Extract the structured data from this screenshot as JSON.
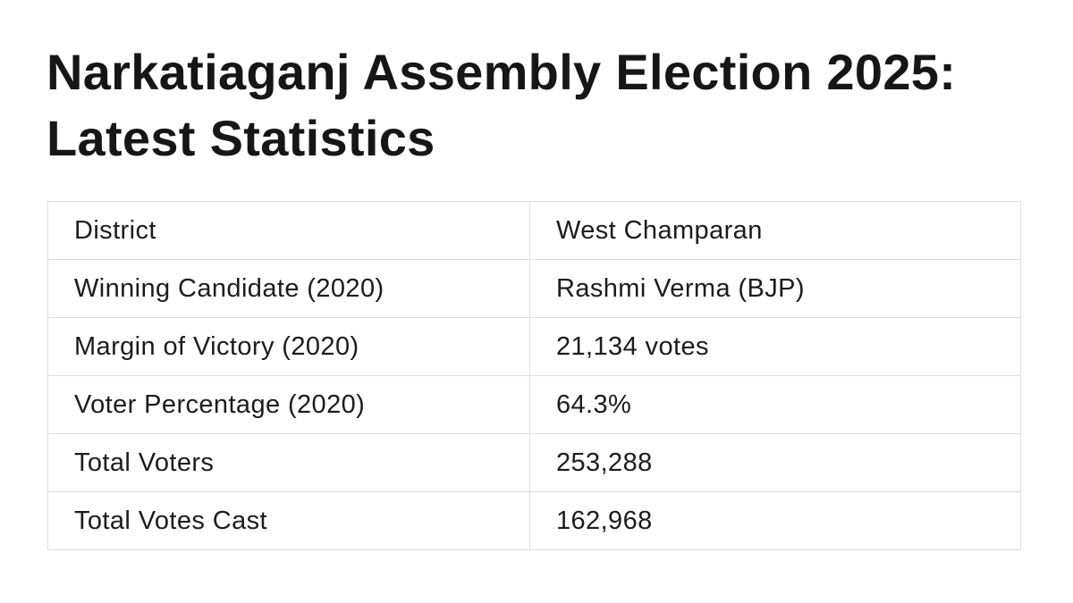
{
  "page": {
    "title": "Narkatiaganj Assembly Election 2025: Latest Statistics"
  },
  "table": {
    "rows": [
      {
        "label": "District",
        "value": "West Champaran"
      },
      {
        "label": "Winning Candidate (2020)",
        "value": "Rashmi Verma (BJP)"
      },
      {
        "label": "Margin of Victory (2020)",
        "value": "21,134 votes"
      },
      {
        "label": "Voter Percentage (2020)",
        "value": "64.3%"
      },
      {
        "label": "Total Voters",
        "value": "253,288"
      },
      {
        "label": "Total Votes Cast",
        "value": "162,968"
      }
    ]
  },
  "colors": {
    "background": "#ffffff",
    "text": "#1a1a1a",
    "border": "#dedede"
  }
}
